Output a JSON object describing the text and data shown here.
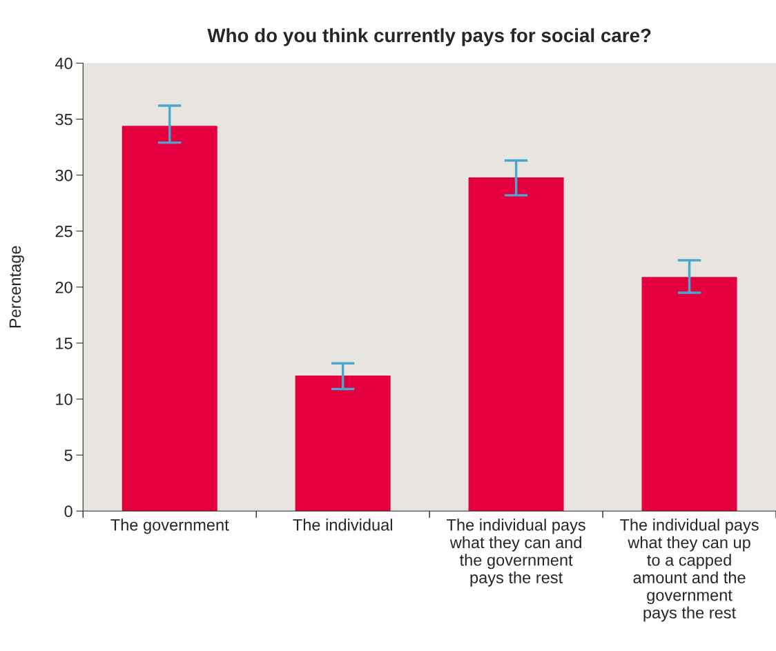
{
  "chart_data": {
    "type": "bar",
    "title": "Who do you think currently pays for social care?",
    "ylabel": "Percentage",
    "categories": [
      "The government",
      "The individual",
      "The individual pays\nwhat they can and\nthe government\npays the rest",
      "The individual pays\nwhat they can up\nto a capped\namount and the\ngovernment\npays the rest"
    ],
    "values": [
      34.4,
      12.1,
      29.8,
      20.9
    ],
    "errors": [
      [
        32.9,
        36.2
      ],
      [
        10.9,
        13.2
      ],
      [
        28.2,
        31.3
      ],
      [
        19.5,
        22.4
      ]
    ],
    "color": "#e4003f",
    "ylim": [
      0,
      40
    ],
    "yticks": [
      0,
      5,
      10,
      15,
      20,
      25,
      30,
      35,
      40
    ],
    "grid": false
  }
}
